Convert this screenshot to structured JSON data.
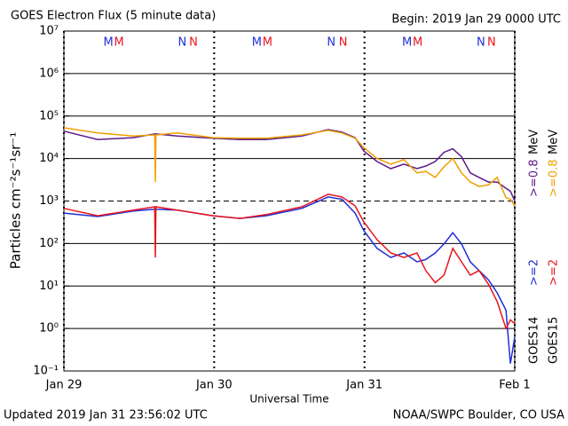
{
  "chart_data": {
    "type": "line",
    "title": "GOES Electron Flux (5 minute data)",
    "subtitle": "Begin: 2019 Jan 29 0000 UTC",
    "xlabel": "Universal Time",
    "ylabel": "Particles cm⁻²s⁻¹sr⁻¹",
    "footer_left": "Updated 2019 Jan 31 23:56:02 UTC",
    "footer_right": "NOAA/SWPC Boulder, CO USA",
    "yscale": "log",
    "ylim": [
      0.1,
      10000000
    ],
    "yticks": [
      {
        "value": 0.1,
        "label": "10⁻¹"
      },
      {
        "value": 1,
        "label": "10⁰"
      },
      {
        "value": 10,
        "label": "10¹"
      },
      {
        "value": 100,
        "label": "10²"
      },
      {
        "value": 1000,
        "label": "10³"
      },
      {
        "value": 10000,
        "label": "10⁴"
      },
      {
        "value": 100000,
        "label": "10⁵"
      },
      {
        "value": 1000000,
        "label": "10⁶"
      },
      {
        "value": 10000000,
        "label": "10⁷"
      }
    ],
    "threshold": 1000,
    "xlim": [
      0,
      72
    ],
    "xticks": [
      {
        "value": 0,
        "label": "Jan 29"
      },
      {
        "value": 24,
        "label": "Jan 30"
      },
      {
        "value": 48,
        "label": "Jan 31"
      },
      {
        "value": 72,
        "label": "Feb 1"
      }
    ],
    "x": [
      0,
      5.4,
      11.1,
      14.5,
      14.6,
      14.7,
      18.1,
      23.8,
      28.1,
      32.3,
      38.0,
      42.2,
      44.4,
      46.5,
      47.9,
      50.0,
      52.2,
      54.3,
      56.4,
      57.8,
      59.3,
      60.7,
      62.1,
      63.5,
      64.9,
      66.3,
      67.8,
      69.2,
      70.6,
      71.3,
      72.0
    ],
    "legend_groups": [
      "GOES14",
      "GOES15"
    ],
    "unit": "MeV",
    "series": [
      {
        "name": ">=2",
        "group": 0,
        "color": "#1f2fd6",
        "values": [
          520,
          430,
          580,
          640,
          640,
          640,
          610,
          450,
          390,
          450,
          670,
          1250,
          1100,
          520,
          200,
          77,
          47,
          60,
          37,
          42,
          60,
          98,
          180,
          98,
          37,
          23,
          14,
          6.9,
          2.7,
          0.15,
          0.63
        ]
      },
      {
        "name": ">=2",
        "group": 1,
        "color": "#e8141c",
        "values": [
          670,
          450,
          610,
          730,
          47,
          730,
          610,
          450,
          390,
          480,
          730,
          1440,
          1250,
          770,
          320,
          124,
          60,
          47,
          60,
          23,
          12,
          18,
          77,
          37,
          18,
          23,
          11,
          4.3,
          1.0,
          1.6,
          1.3
        ]
      },
      {
        "name": ">=0.8",
        "group": 0,
        "color": "#5b1a8a",
        "values": [
          44000,
          28000,
          31000,
          38000,
          38000,
          38000,
          34000,
          30000,
          28000,
          28000,
          34000,
          48000,
          42000,
          31000,
          15000,
          8500,
          5800,
          7400,
          5800,
          6700,
          8500,
          14000,
          17000,
          11000,
          4600,
          3600,
          2800,
          2800,
          2000,
          1700,
          1000
        ]
      },
      {
        "name": ">=0.8",
        "group": 1,
        "color": "#f0a000",
        "values": [
          53000,
          40000,
          34000,
          36000,
          2800,
          36000,
          40000,
          31000,
          30000,
          30000,
          36000,
          46000,
          40000,
          30000,
          18000,
          10000,
          7400,
          9400,
          4600,
          5000,
          3600,
          6400,
          10000,
          4600,
          2800,
          2200,
          2400,
          3600,
          1200,
          1100,
          770
        ]
      }
    ],
    "markers": [
      {
        "label": "M",
        "x": 7.1,
        "color": "#1f2fd6"
      },
      {
        "label": "M",
        "x": 8.8,
        "color": "#e8141c"
      },
      {
        "label": "N",
        "x": 18.9,
        "color": "#1f2fd6"
      },
      {
        "label": "N",
        "x": 20.7,
        "color": "#e8141c"
      },
      {
        "label": "M",
        "x": 30.8,
        "color": "#1f2fd6"
      },
      {
        "label": "M",
        "x": 32.5,
        "color": "#e8141c"
      },
      {
        "label": "N",
        "x": 42.7,
        "color": "#1f2fd6"
      },
      {
        "label": "N",
        "x": 44.6,
        "color": "#e8141c"
      },
      {
        "label": "M",
        "x": 54.8,
        "color": "#1f2fd6"
      },
      {
        "label": "M",
        "x": 56.5,
        "color": "#e8141c"
      },
      {
        "label": "N",
        "x": 66.6,
        "color": "#1f2fd6"
      },
      {
        "label": "N",
        "x": 68.3,
        "color": "#e8141c"
      }
    ]
  }
}
